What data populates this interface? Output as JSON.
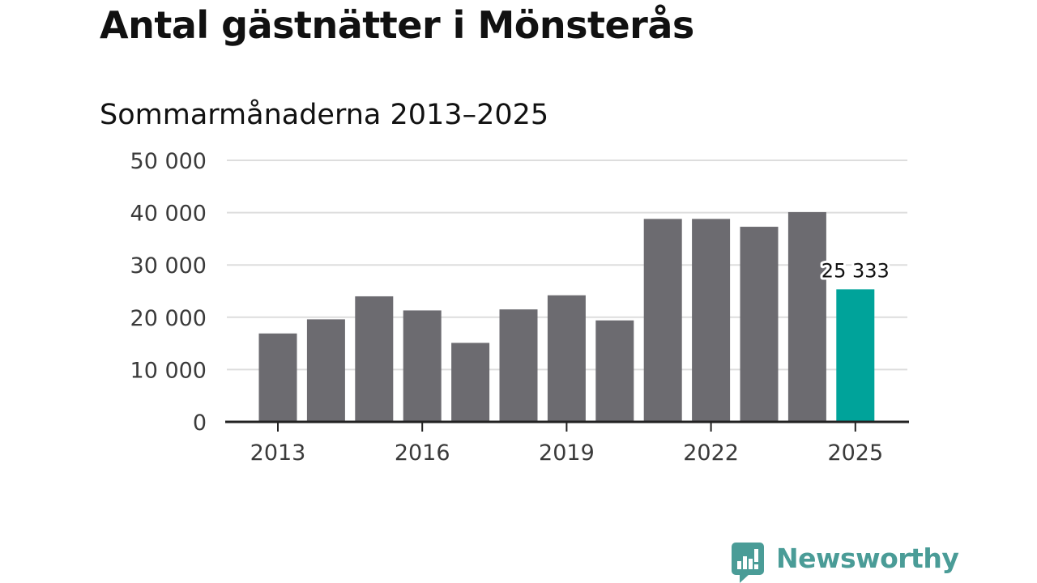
{
  "chart_data": {
    "type": "bar",
    "title": "Antal gästnätter i Mönsterås",
    "subtitle": "Sommarmånaderna 2013–2025",
    "categories": [
      "2013",
      "2014",
      "2015",
      "2016",
      "2017",
      "2018",
      "2019",
      "2020",
      "2021",
      "2022",
      "2023",
      "2024",
      "2025"
    ],
    "values": [
      16900,
      19600,
      24000,
      21300,
      15100,
      21500,
      24200,
      19400,
      38800,
      38800,
      37300,
      40100,
      25333
    ],
    "x_tick_labels": [
      "2013",
      "2016",
      "2019",
      "2022",
      "2025"
    ],
    "y_tick_values": [
      0,
      10000,
      20000,
      30000,
      40000,
      50000
    ],
    "y_tick_labels": [
      "0",
      "10 000",
      "20 000",
      "30 000",
      "40 000",
      "50 000"
    ],
    "ylim": [
      0,
      50000
    ],
    "annotations": [
      {
        "category": "2025",
        "text": "25 333"
      }
    ],
    "grid": true,
    "legend": "none",
    "colors": {
      "bar": "#6c6b70",
      "highlight": "#00a39a",
      "grid": "#dddddd",
      "axis": "#222222"
    },
    "highlight_category": "2025"
  },
  "brand": {
    "name": "Newsworthy",
    "icon": "newsworthy-logo-icon",
    "color": "#4a9c97"
  }
}
